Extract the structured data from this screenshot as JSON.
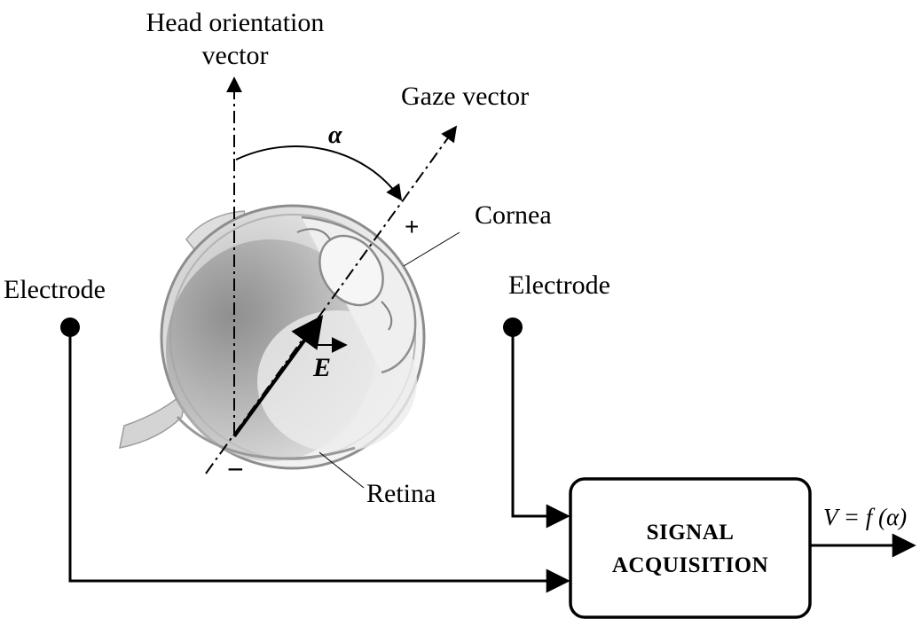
{
  "labels": {
    "head_vector_line1": "Head orientation",
    "head_vector_line2": "vector",
    "gaze_vector": "Gaze vector",
    "alpha": "α",
    "cornea": "Cornea",
    "retina": "Retina",
    "electrode_left": "Electrode",
    "electrode_right": "Electrode",
    "e_vector": "E",
    "plus": "+",
    "minus": "−",
    "output": "V = f (α)"
  },
  "box": {
    "line1": "SIGNAL",
    "line2": "ACQUISITION"
  },
  "colors": {
    "ink": "#000000",
    "eye_shadow": "#8a8a8a",
    "eye_light": "#f2f2f2"
  }
}
